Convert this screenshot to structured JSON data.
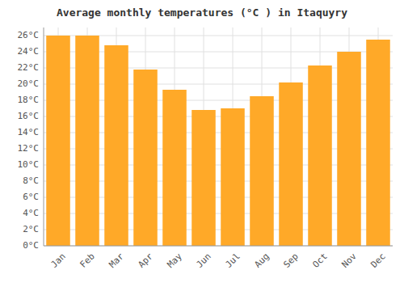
{
  "chart_data": {
    "type": "bar",
    "title": "Average monthly temperatures (°C ) in Itaquyry",
    "categories": [
      "Jan",
      "Feb",
      "Mar",
      "Apr",
      "May",
      "Jun",
      "Jul",
      "Aug",
      "Sep",
      "Oct",
      "Nov",
      "Dec"
    ],
    "values": [
      26.0,
      26.0,
      24.8,
      21.8,
      19.3,
      16.8,
      17.0,
      18.5,
      20.2,
      22.3,
      24.0,
      25.5
    ],
    "color": "#FFA928",
    "ylim": [
      0,
      27
    ],
    "yticks": [
      {
        "value": 0,
        "label": "0°C"
      },
      {
        "value": 2,
        "label": "2°C"
      },
      {
        "value": 4,
        "label": "4°C"
      },
      {
        "value": 6,
        "label": "6°C"
      },
      {
        "value": 8,
        "label": "8°C"
      },
      {
        "value": 10,
        "label": "10°C"
      },
      {
        "value": 12,
        "label": "12°C"
      },
      {
        "value": 14,
        "label": "14°C"
      },
      {
        "value": 16,
        "label": "16°C"
      },
      {
        "value": 18,
        "label": "18°C"
      },
      {
        "value": 20,
        "label": "20°C"
      },
      {
        "value": 22,
        "label": "22°C"
      },
      {
        "value": 24,
        "label": "24°C"
      },
      {
        "value": 26,
        "label": "26°C"
      }
    ],
    "grid": true
  }
}
